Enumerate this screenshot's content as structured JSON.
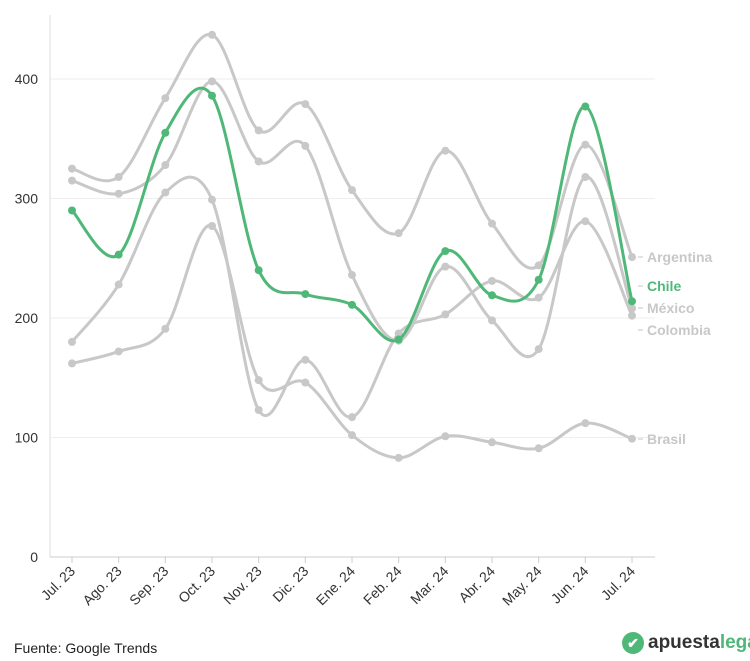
{
  "chart_data": {
    "type": "line",
    "title": "",
    "xlabel": "",
    "ylabel": "",
    "ylim": [
      0,
      450
    ],
    "yticks": [
      0,
      100,
      200,
      300,
      400
    ],
    "categories": [
      "Jul. 23",
      "Ago. 23",
      "Sep. 23",
      "Oct. 23",
      "Nov. 23",
      "Dic. 23",
      "Ene. 24",
      "Feb. 24",
      "Mar. 24",
      "Abr. 24",
      "May. 24",
      "Jun. 24",
      "Jul. 24"
    ],
    "grid": true,
    "legend": "end-of-line labels",
    "series": [
      {
        "name": "Argentina",
        "color": "#c8c8c8",
        "values": [
          325,
          318,
          384,
          437,
          357,
          379,
          307,
          271,
          340,
          279,
          244,
          345,
          251
        ]
      },
      {
        "name": "México",
        "color": "#c8c8c8",
        "values": [
          315,
          304,
          328,
          398,
          331,
          344,
          236,
          181,
          243,
          198,
          174,
          318,
          208
        ]
      },
      {
        "name": "Colombia",
        "color": "#c8c8c8",
        "values": [
          180,
          228,
          305,
          299,
          123,
          165,
          117,
          187,
          203,
          231,
          217,
          281,
          202
        ]
      },
      {
        "name": "Brasil",
        "color": "#c8c8c8",
        "values": [
          162,
          172,
          191,
          277,
          148,
          146,
          102,
          83,
          101,
          96,
          91,
          112,
          99
        ]
      },
      {
        "name": "Chile",
        "color": "#4fb878",
        "values": [
          290,
          253,
          355,
          386,
          240,
          220,
          211,
          182,
          256,
          219,
          232,
          377,
          214
        ]
      }
    ]
  },
  "footer": {
    "source": "Fuente: Google Trends",
    "logo_a": "apuesta",
    "logo_b": "legal",
    "logo_icon": "check-icon"
  }
}
